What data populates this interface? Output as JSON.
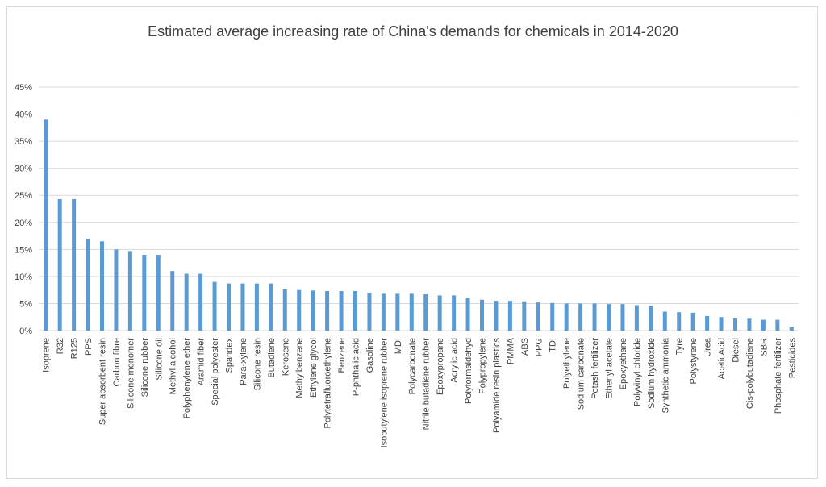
{
  "chart_data": {
    "type": "bar",
    "title": "Estimated average increasing rate of China's demands for chemicals in 2014-2020",
    "xlabel": "",
    "ylabel": "",
    "ylim": [
      0,
      45
    ],
    "yticks": [
      "0%",
      "5%",
      "10%",
      "15%",
      "20%",
      "25%",
      "30%",
      "35%",
      "40%",
      "45%"
    ],
    "grid": true,
    "bar_color": "#5b9bd5",
    "categories": [
      "Isoprene",
      "R32",
      "R125",
      "PPS",
      "Super absorbent resin",
      "Carbon fibre",
      "Silicone monomer",
      "Silicone rubber",
      "Silicone oil",
      "Methyl alcohol",
      "Polyphenylene ether",
      "Aramid fiber",
      "Special polyester",
      "Spandex",
      "Para-xylene",
      "Silicone resin",
      "Butadiene",
      "Kerosene",
      "Methylbenzene",
      "Ethylene glycol",
      "Polytetrafluoroethylene",
      "Benzene",
      "P-phthalic acid",
      "Gasoline",
      "Isobutylene isoprene rubber",
      "MDI",
      "Polycarbonate",
      "Nitrile butadiene rubber",
      "Epoxypropane",
      "Acrylic acid",
      "Polyformaldehyd",
      "Polypropylene",
      "Polyamide resin plastics",
      "PMMA",
      "ABS",
      "PPG",
      "TDI",
      "Polyethylene",
      "Sodium carbonate",
      "Potash fertilizer",
      "Ethenyl acetate",
      "Epoxyethane",
      "Polyvinyl chloride",
      "Sodium hydroxide",
      "Synthetic ammonia",
      "Tyre",
      "Polystyrene",
      "Urea",
      "AceticAcid",
      "Diesel",
      "Cis-polybutadiene",
      "SBR",
      "Phosphate fertilizer",
      "Pesticides"
    ],
    "values": [
      39,
      24.3,
      24.3,
      17,
      16.5,
      15,
      14.7,
      14,
      14,
      11,
      10.5,
      10.5,
      9,
      8.7,
      8.7,
      8.7,
      8.7,
      7.6,
      7.5,
      7.4,
      7.3,
      7.3,
      7.3,
      7,
      6.8,
      6.8,
      6.8,
      6.7,
      6.5,
      6.5,
      6,
      5.7,
      5.5,
      5.5,
      5.4,
      5.2,
      5.1,
      5,
      5,
      5,
      4.9,
      4.9,
      4.7,
      4.6,
      3.5,
      3.4,
      3.3,
      2.7,
      2.5,
      2.3,
      2.2,
      2,
      2,
      0.6
    ]
  }
}
